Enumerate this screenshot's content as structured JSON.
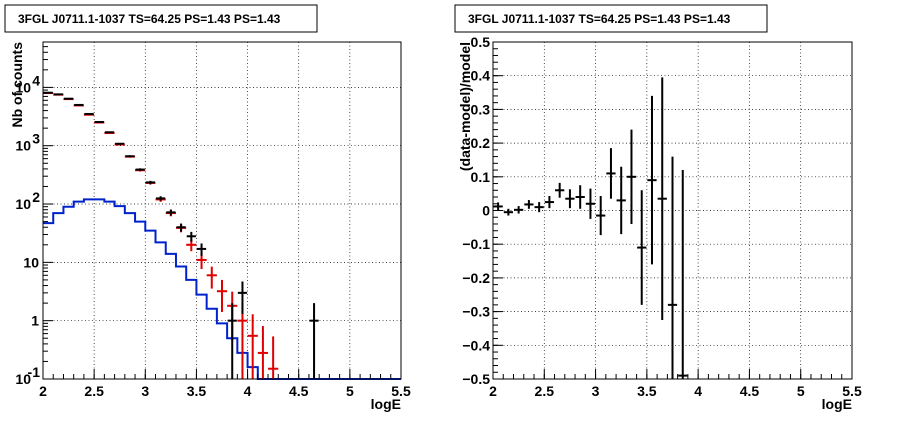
{
  "chart_data": [
    {
      "type": "line",
      "title": "3FGL J0711.1-1037 TS=64.25 PS=1.43 PS=1.43",
      "xlabel": "logE",
      "ylabel": "Nb of counts",
      "xlim": [
        2,
        5.5
      ],
      "ylim": [
        0.1,
        60000
      ],
      "y_scale": "log",
      "grid": true,
      "x_ticks": [
        "2",
        "2.5",
        "3",
        "3.5",
        "4",
        "4.5",
        "5",
        "5.5"
      ],
      "y_ticks": [
        {
          "value": 0.1,
          "base": "10",
          "exp": "-1"
        },
        {
          "value": 1,
          "base": "1",
          "exp": ""
        },
        {
          "value": 10,
          "base": "10",
          "exp": ""
        },
        {
          "value": 100,
          "base": "10",
          "exp": "2"
        },
        {
          "value": 1000,
          "base": "10",
          "exp": "3"
        },
        {
          "value": 10000,
          "base": "10",
          "exp": "4"
        }
      ],
      "bin_width": 0.1,
      "colors": {
        "model": "#e00000",
        "source": "#0022cc",
        "data": "#000000"
      },
      "series": [
        {
          "role": "model",
          "style": "steps",
          "x": [
            2.05,
            2.15,
            2.25,
            2.35,
            2.45,
            2.55,
            2.65,
            2.75,
            2.85,
            2.95,
            3.05,
            3.15,
            3.25,
            3.35,
            3.45,
            3.55,
            3.65,
            3.75,
            3.85,
            3.95,
            4.05,
            4.15,
            4.25
          ],
          "y": [
            8000,
            7500,
            6300,
            4900,
            3400,
            2500,
            1650,
            1050,
            650,
            380,
            230,
            120,
            70,
            39,
            20,
            11,
            6,
            3.2,
            1.8,
            1.0,
            0.55,
            0.28,
            0.15
          ]
        },
        {
          "role": "source",
          "style": "steps",
          "x": [
            2.05,
            2.15,
            2.25,
            2.35,
            2.45,
            2.55,
            2.65,
            2.75,
            2.85,
            2.95,
            3.05,
            3.15,
            3.25,
            3.35,
            3.45,
            3.55,
            3.65,
            3.75,
            3.85,
            3.95,
            4.05,
            4.15,
            4.25,
            4.35,
            4.45,
            4.55,
            4.65,
            4.75,
            4.85,
            4.95,
            5.05,
            5.15,
            5.25,
            5.35,
            5.45
          ],
          "y": [
            47,
            70,
            90,
            110,
            120,
            120,
            110,
            92,
            70,
            50,
            35,
            22,
            14,
            8.5,
            5,
            2.8,
            1.6,
            0.9,
            0.5,
            0.28,
            0.16,
            0.1,
            0.1,
            0.1,
            0.1,
            0.1,
            0.1,
            0.1,
            0.1,
            0.1,
            0.1,
            0.1,
            0.1,
            0.1,
            0.1
          ]
        },
        {
          "role": "data",
          "style": "errorbars",
          "x": [
            2.05,
            2.15,
            2.25,
            2.35,
            2.45,
            2.55,
            2.65,
            2.75,
            2.85,
            2.95,
            3.05,
            3.15,
            3.25,
            3.35,
            3.45,
            3.55,
            3.85,
            3.95,
            4.65
          ],
          "y": [
            8100,
            7600,
            6400,
            5000,
            3500,
            2550,
            1700,
            1080,
            660,
            390,
            235,
            125,
            72,
            40,
            28,
            17,
            1,
            3,
            1
          ],
          "yerr": [
            90,
            87,
            80,
            71,
            59,
            50,
            41,
            33,
            26,
            20,
            15,
            11,
            8.5,
            6.3,
            5.3,
            4.1,
            1,
            1.7,
            1
          ]
        }
      ]
    },
    {
      "type": "scatter",
      "title": "3FGL J0711.1-1037 TS=64.25 PS=1.43 PS=1.43",
      "xlabel": "logE",
      "ylabel": "(data-model)/model",
      "xlim": [
        2,
        5.5
      ],
      "ylim": [
        -0.5,
        0.5
      ],
      "grid": true,
      "x_ticks": [
        "2",
        "2.5",
        "3",
        "3.5",
        "4",
        "4.5",
        "5",
        "5.5"
      ],
      "y_ticks": [
        "−0.5",
        "−0.4",
        "−0.3",
        "−0.2",
        "−0.1",
        "0",
        "0.1",
        "0.2",
        "0.3",
        "0.4",
        "0.5"
      ],
      "y_tick_values": [
        -0.5,
        -0.4,
        -0.3,
        -0.2,
        -0.1,
        0,
        0.1,
        0.2,
        0.3,
        0.4,
        0.5
      ],
      "bin_width": 0.1,
      "color": "#000000",
      "series": [
        {
          "x": [
            2.05,
            2.15,
            2.25,
            2.35,
            2.45,
            2.55,
            2.65,
            2.75,
            2.85,
            2.95,
            3.05,
            3.15,
            3.25,
            3.35,
            3.45,
            3.55,
            3.65,
            3.75,
            3.85
          ],
          "y": [
            0.012,
            -0.005,
            0.002,
            0.018,
            0.01,
            0.025,
            0.06,
            0.035,
            0.04,
            0.02,
            -0.015,
            0.11,
            0.03,
            0.1,
            -0.11,
            0.09,
            0.035,
            -0.28,
            -0.49
          ],
          "yerr": [
            0.012,
            0.01,
            0.011,
            0.013,
            0.015,
            0.018,
            0.022,
            0.028,
            0.035,
            0.045,
            0.058,
            0.075,
            0.1,
            0.14,
            0.17,
            0.25,
            0.36,
            0.44,
            0.61
          ]
        }
      ]
    }
  ]
}
